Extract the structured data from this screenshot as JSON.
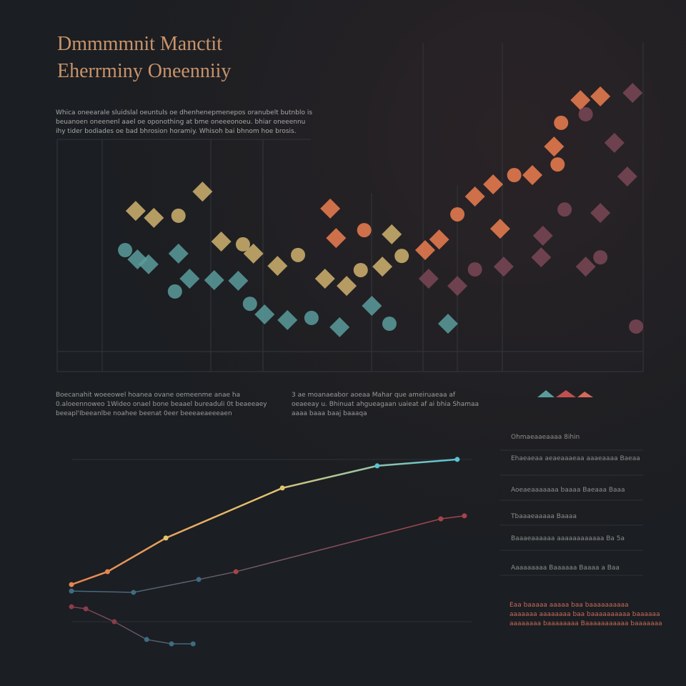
{
  "header": {
    "title_lines": [
      "Dmmmmnit Manctit",
      "Eherrminy Oneenniiy"
    ],
    "intro": [
      "Whica oneearale sluidslal oeuntuls oe dhenhenepmenepos oranubelt butnblo is",
      "beuanoen oneenenl aael oe oponothing at bme oneeeonoeu. bhiar oneeennu",
      "ihy tider bodiades oe bad bhrosion horamiy. Whisoh bai bhnom hoe brosis."
    ]
  },
  "chart_data": [
    {
      "type": "scatter",
      "xlim": [
        0,
        100
      ],
      "ylim": [
        0,
        125
      ],
      "series": [
        {
          "name": null,
          "color": "#5a9c9c",
          "x": [
            20.7,
            22.6,
            20.1,
            26.8,
            30.9,
            32.9,
            35.4,
            39.3,
            43.4,
            48.2,
            53.7,
            56.7,
            66.7,
            13.7,
            11.6,
            15.6
          ],
          "values": [
            50.8,
            40,
            34.5,
            39.4,
            39.1,
            29.2,
            24.6,
            22.2,
            23.1,
            19.1,
            28.3,
            20.6,
            20.6,
            48.3,
            52.3,
            46.2
          ]
        },
        {
          "name": null,
          "color": "#d0b36e",
          "x": [
            13.4,
            16.5,
            20.7,
            24.8,
            28,
            31.7,
            33.5,
            37.6,
            41.1,
            45.7,
            49.4,
            51.8,
            55.5,
            57.1,
            58.8
          ],
          "values": [
            69.2,
            66.2,
            67.1,
            77.5,
            56,
            54.8,
            50.8,
            45.5,
            50.2,
            40,
            36.9,
            43.7,
            45.2,
            59.1,
            49.8
          ]
        },
        {
          "name": null,
          "color": "#ec7e50",
          "x": [
            46.6,
            47.6,
            52.4,
            62.8,
            65.2,
            68.3,
            71.3,
            74.4,
            78,
            81.1,
            84.8,
            86,
            89.3,
            92.7,
            85.4,
            75.6
          ],
          "values": [
            70.2,
            57.5,
            60.9,
            52.3,
            56.9,
            67.7,
            75.4,
            80.6,
            84.6,
            84.6,
            96.9,
            107.1,
            116.9,
            118.5,
            89.2,
            61.5
          ]
        },
        {
          "name": null,
          "color": "#7a4656",
          "x": [
            63.4,
            68.3,
            71.3,
            76.2,
            82.9,
            86.6,
            92.7,
            97.3,
            92.7,
            90.2,
            82.6,
            98.8,
            95.1,
            98.2,
            90.2
          ],
          "values": [
            40,
            36.9,
            44,
            45.2,
            58.5,
            69.8,
            68.3,
            84,
            49.2,
            45.2,
            49.2,
            19.4,
            98.5,
            120,
            110.8
          ]
        }
      ]
    },
    {
      "type": "line",
      "xlim": [
        0,
        10
      ],
      "ylim": [
        0,
        100
      ],
      "series": [
        {
          "name": null,
          "colors": [
            "#e8834f",
            "#e3c46e",
            "#58c3d4"
          ],
          "x": [
            0,
            0.9,
            2.36,
            5.27,
            7.64,
            9.64
          ],
          "values": [
            32.8,
            39.6,
            57.4,
            83.8,
            95.5,
            98.9
          ]
        },
        {
          "name": null,
          "colors": [
            "#3f6c82",
            "#a8434a"
          ],
          "x": [
            0,
            1.55,
            3.18,
            4.11,
            9.23,
            9.82
          ],
          "values": [
            29.4,
            28.7,
            35.5,
            39.6,
            67.5,
            69.1
          ]
        },
        {
          "name": null,
          "colors": [
            "#8a3d4c",
            "#3f6c82"
          ],
          "x": [
            0,
            0.36,
            1.07,
            1.88,
            2.5,
            3.04
          ],
          "values": [
            21.1,
            20,
            13.2,
            3.8,
            1.5,
            1.5
          ]
        }
      ]
    }
  ],
  "notes": {
    "left": [
      "Boecanahit woeeowel hoanea ovane oemeenme anae ha",
      "0.aloeennoweo 1Wideo onael bone beaael bureaduli 0t beaeeaey",
      "beeapl'Ibeeanlbe noahee beenat 0eer beeeaeaeeeaen"
    ],
    "right": [
      "3 ae moanaeabor aoeaa Mahar que ameiruaeaa af",
      "oeaeeay u. Bhinuat ahgueagaan uaieat af ai bhia Shamaa",
      "aaaa baaa baaj baaaqa"
    ]
  },
  "side_panel": {
    "items": [
      "Ohmaeaaeaaaa 8ihin",
      "Ehaeaeaa aeaeaaaeaa aaaeaaaa Baeaa",
      "Aoeaeaaaaaaa baaaa Baeaaa Baaa",
      "Tbaaaeaaaaa Baaaa",
      "Baaaeaaaaaa aaaaaaaaaaaa Ba 5a",
      "Aaaaaaaaa Baaaaaa Baaaa a Baa"
    ],
    "footer": [
      "Eaa baaaaa aaaaa baa baaaaaaaaaa",
      "aaaaaaa aaaaaaaa baa baaaaaaaaaa baaaaaa",
      "aaaaaaaa baaaaaaaa Baaaaaaaaaaa baaaaaaa"
    ]
  }
}
